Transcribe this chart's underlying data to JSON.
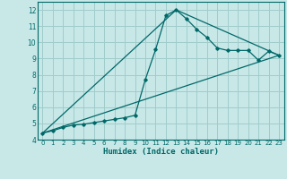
{
  "xlabel": "Humidex (Indice chaleur)",
  "ylabel": "",
  "xlim": [
    -0.5,
    23.5
  ],
  "ylim": [
    4,
    12.5
  ],
  "yticks": [
    4,
    5,
    6,
    7,
    8,
    9,
    10,
    11,
    12
  ],
  "xticks": [
    0,
    1,
    2,
    3,
    4,
    5,
    6,
    7,
    8,
    9,
    10,
    11,
    12,
    13,
    14,
    15,
    16,
    17,
    18,
    19,
    20,
    21,
    22,
    23
  ],
  "bg_color": "#c8e8e8",
  "grid_color": "#a0cccc",
  "line_color": "#006868",
  "line1_x": [
    0,
    1,
    2,
    3,
    4,
    5,
    6,
    7,
    8,
    9,
    10,
    11,
    12,
    13,
    14,
    15,
    16,
    17,
    18,
    19,
    20,
    21,
    22,
    23
  ],
  "line1_y": [
    4.4,
    4.55,
    4.75,
    4.9,
    4.95,
    5.05,
    5.15,
    5.25,
    5.35,
    5.5,
    7.7,
    9.55,
    11.65,
    12.0,
    11.45,
    10.8,
    10.3,
    9.65,
    9.5,
    9.5,
    9.5,
    8.9,
    9.45,
    9.2
  ],
  "line2_x": [
    0,
    23
  ],
  "line2_y": [
    4.4,
    9.2
  ],
  "line3_x": [
    0,
    13,
    23
  ],
  "line3_y": [
    4.4,
    12.0,
    9.2
  ]
}
